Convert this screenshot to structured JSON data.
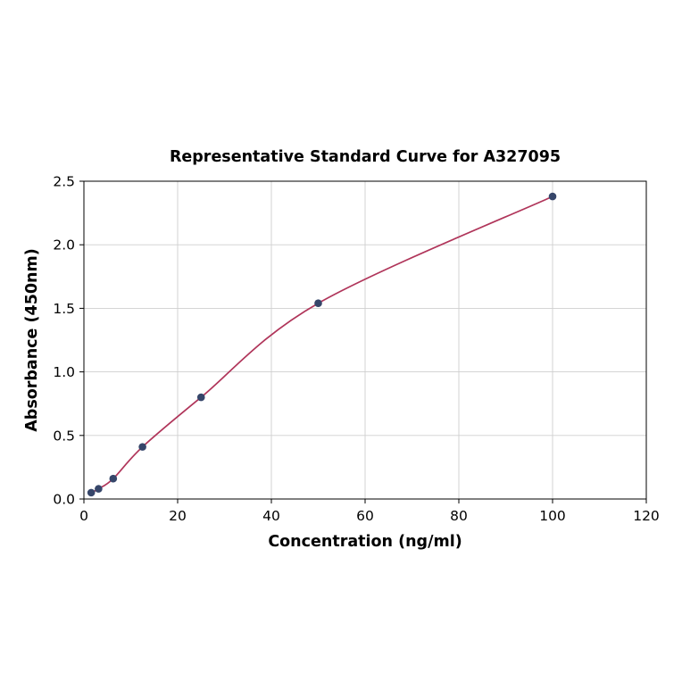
{
  "chart_data": {
    "type": "line",
    "title": "Representative Standard Curve for A327095",
    "xlabel": "Concentration (ng/ml)",
    "ylabel": "Absorbance (450nm)",
    "x": [
      1.56,
      3.12,
      6.25,
      12.5,
      25,
      50,
      100
    ],
    "y": [
      0.05,
      0.08,
      0.16,
      0.41,
      0.8,
      1.54,
      2.38
    ],
    "xlim": [
      0,
      120
    ],
    "ylim": [
      0,
      2.5
    ],
    "x_ticks": [
      0,
      20,
      40,
      60,
      80,
      100,
      120
    ],
    "y_ticks": [
      0.0,
      0.5,
      1.0,
      1.5,
      2.0,
      2.5
    ],
    "y_tick_decimals": 1,
    "grid": true,
    "legend": "none",
    "line_color": "#b0355a",
    "marker_color": "#36466a",
    "grid_color": "#cfcfcf",
    "frame_color": "#000000"
  }
}
